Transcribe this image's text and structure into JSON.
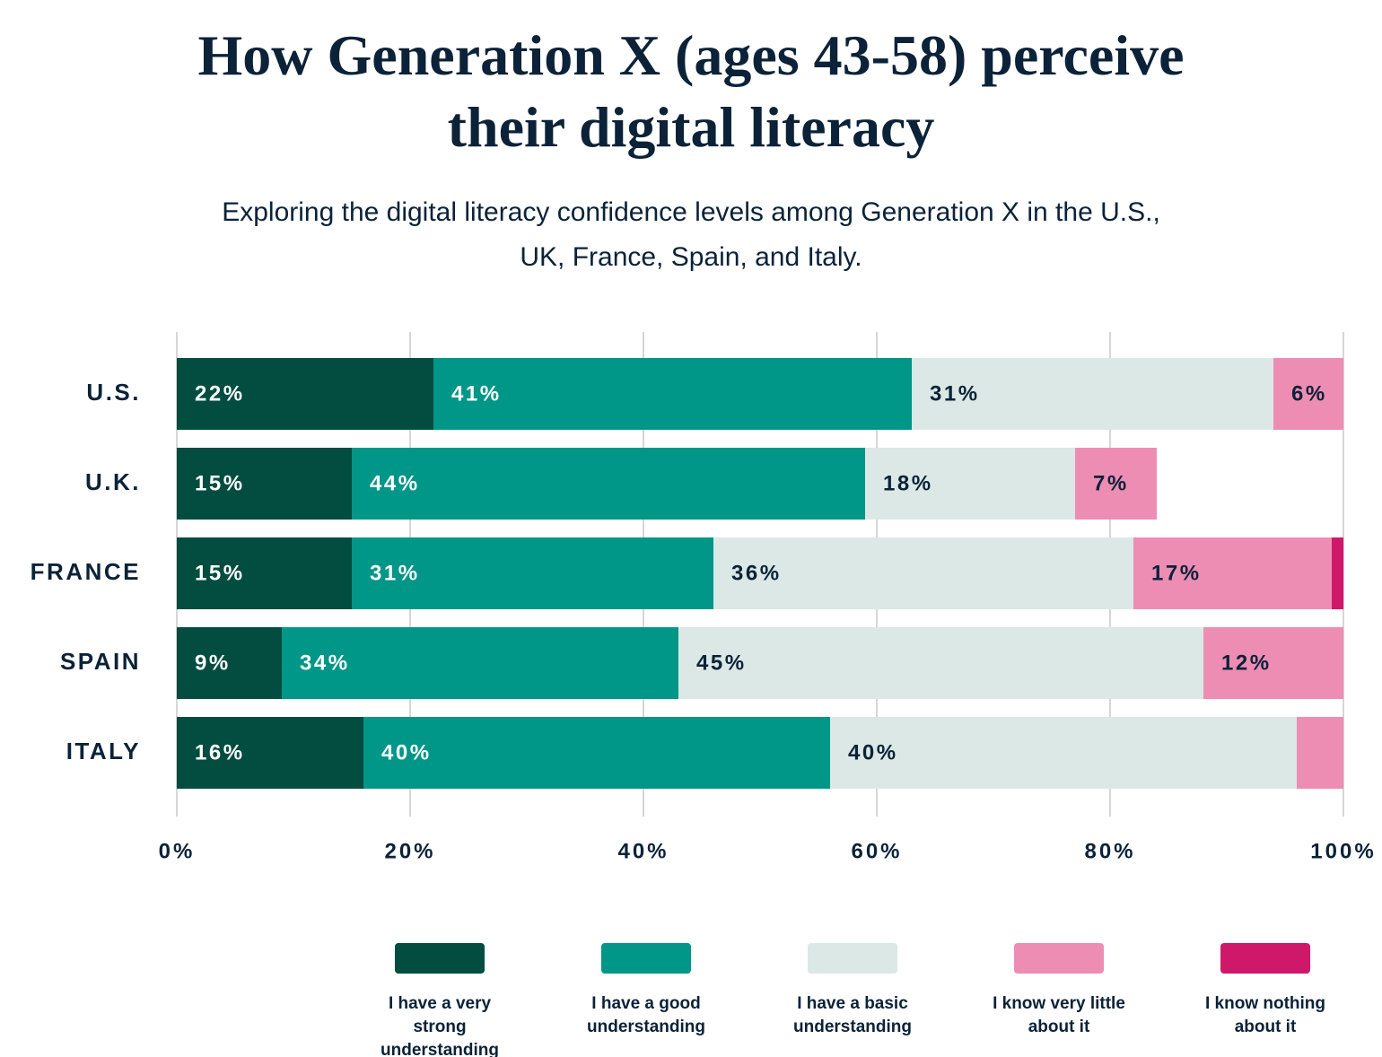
{
  "chart_data": {
    "type": "stacked-bar-horizontal",
    "title": "How Generation X (ages 43-58) perceive their digital literacy",
    "subtitle": "Exploring the digital literacy confidence levels among Generation X in the U.S., UK, France, Spain, and Italy.",
    "categories": [
      "U.S.",
      "U.K.",
      "FRANCE",
      "SPAIN",
      "ITALY"
    ],
    "series": [
      {
        "name": "I have a very strong understanding",
        "color": "#024c40",
        "label_color": "#ffffff",
        "values": [
          22,
          15,
          15,
          9,
          16
        ],
        "value_labels": [
          "22%",
          "15%",
          "15%",
          "9%",
          "16%"
        ]
      },
      {
        "name": "I have a good understanding",
        "color": "#009688",
        "label_color": "#ffffff",
        "values": [
          41,
          44,
          31,
          34,
          40
        ],
        "value_labels": [
          "41%",
          "44%",
          "31%",
          "34%",
          "40%"
        ]
      },
      {
        "name": "I have a basic understanding",
        "color": "#dbe8e6",
        "label_color": "#0b2238",
        "values": [
          31,
          18,
          36,
          45,
          40
        ],
        "value_labels": [
          "31%",
          "18%",
          "36%",
          "45%",
          "40%"
        ]
      },
      {
        "name": "I know very little about it",
        "color": "#ee8db4",
        "label_color": "#0b2238",
        "values": [
          6,
          7,
          17,
          12,
          4
        ],
        "value_labels": [
          "6%",
          "7%",
          "17%",
          "12%",
          null
        ]
      },
      {
        "name": "I know nothing about it",
        "color": "#d0186b",
        "label_color": "#ffffff",
        "values": [
          0,
          0,
          1,
          0,
          0
        ],
        "value_labels": [
          null,
          null,
          null,
          null,
          null
        ]
      }
    ],
    "xlim": [
      0,
      100
    ],
    "xticks": [
      {
        "value": 0,
        "label": "0%"
      },
      {
        "value": 20,
        "label": "20%"
      },
      {
        "value": 40,
        "label": "40%"
      },
      {
        "value": 60,
        "label": "60%"
      },
      {
        "value": 80,
        "label": "80%"
      },
      {
        "value": 100,
        "label": "100%"
      }
    ],
    "grid": true,
    "legend": "bottom"
  }
}
